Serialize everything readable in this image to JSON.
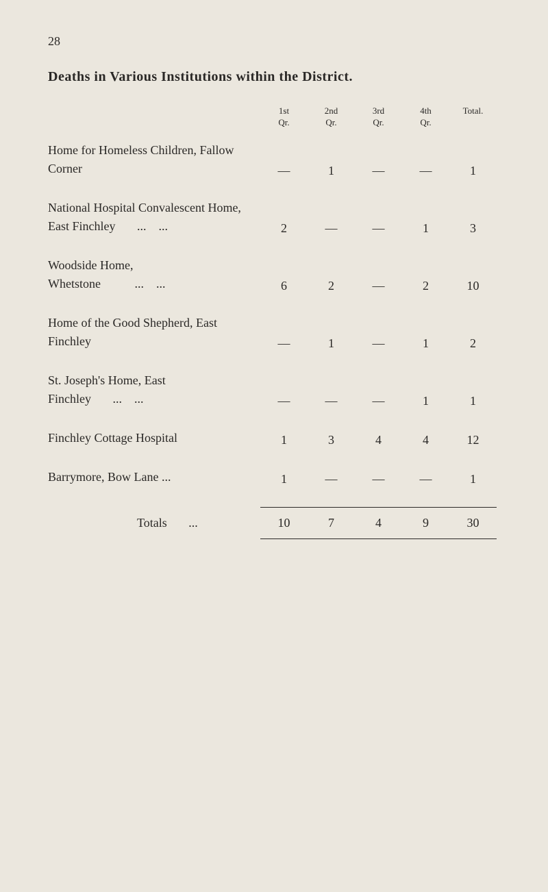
{
  "page_number": "28",
  "title": "Deaths in Various Institutions within the District.",
  "headers": {
    "q1": "1st\nQr.",
    "q2": "2nd\nQr.",
    "q3": "3rd\nQr.",
    "q4": "4th\nQr.",
    "total": "Total."
  },
  "rows": [
    {
      "label": "Home for Homeless Children, Fallow Corner",
      "q1": "—",
      "q2": "1",
      "q3": "—",
      "q4": "—",
      "total": "1"
    },
    {
      "label": "National Hospital Convalescent Home, East Finchley       ...    ...",
      "q1": "2",
      "q2": "—",
      "q3": "—",
      "q4": "1",
      "total": "3"
    },
    {
      "label": "Woodside Home, Whetstone           ...    ...",
      "q1": "6",
      "q2": "2",
      "q3": "—",
      "q4": "2",
      "total": "10"
    },
    {
      "label": "Home of the Good Shepherd, East Finchley",
      "q1": "—",
      "q2": "1",
      "q3": "—",
      "q4": "1",
      "total": "2"
    },
    {
      "label": "St. Joseph's Home, East Finchley       ...    ...",
      "q1": "—",
      "q2": "—",
      "q3": "—",
      "q4": "1",
      "total": "1"
    },
    {
      "label": "Finchley Cottage Hospital",
      "q1": "1",
      "q2": "3",
      "q3": "4",
      "q4": "4",
      "total": "12"
    },
    {
      "label": "Barrymore, Bow Lane ...",
      "q1": "1",
      "q2": "—",
      "q3": "—",
      "q4": "—",
      "total": "1"
    }
  ],
  "totals": {
    "label": "Totals       ...",
    "q1": "10",
    "q2": "7",
    "q3": "4",
    "q4": "9",
    "total": "30"
  },
  "colors": {
    "background": "#ebe7de",
    "text": "#2a2826"
  },
  "typography": {
    "body_fontsize": 18,
    "title_fontsize": 20,
    "header_fontsize": 13
  }
}
